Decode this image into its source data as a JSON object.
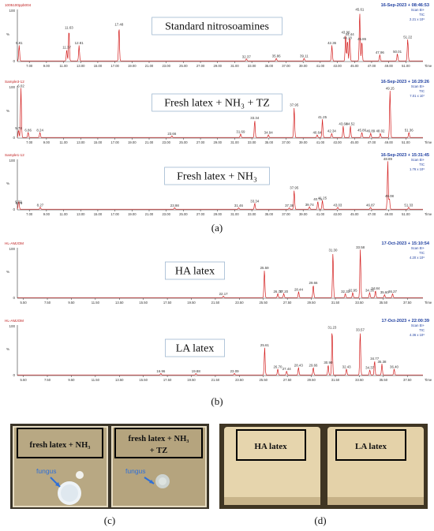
{
  "panels": {
    "a": "(a)",
    "b": "(b)",
    "c": "(c)",
    "d": "(d)"
  },
  "colors": {
    "trace": "#d42020",
    "axis": "#333333",
    "header_blue": "#1f3fa0",
    "header_red": "#c02020",
    "box_border": "#9fb8d0"
  },
  "chart_data": [
    {
      "type": "line",
      "sample_id": "1005100ppb004",
      "title": "Standard nitrosoamines",
      "timestamp": "16-Sep-2023 + 08:46:53",
      "scan_lines": [
        "Scan EI+",
        "TIC",
        "2.21 x 10⁸"
      ],
      "ylabel": "%",
      "xlabel": "Time",
      "y_ticks": [
        "100",
        "0"
      ],
      "x_ticks": [
        "7.00",
        "9.00",
        "11.00",
        "13.00",
        "15.00",
        "17.00",
        "19.00",
        "21.00",
        "23.00",
        "25.00",
        "27.00",
        "29.00",
        "31.00",
        "33.00",
        "35.00",
        "37.00",
        "39.00",
        "41.00",
        "43.00",
        "45.00",
        "47.00",
        "49.00",
        "51.00"
      ],
      "xlim": [
        5.6,
        53.0
      ],
      "ylim": [
        0,
        100
      ],
      "peaks": [
        {
          "rt": 5.81,
          "h": 30
        },
        {
          "rt": 11.37,
          "h": 22
        },
        {
          "rt": 11.63,
          "h": 60
        },
        {
          "rt": 12.81,
          "h": 30
        },
        {
          "rt": 17.48,
          "h": 66
        },
        {
          "rt": 32.37,
          "h": 4
        },
        {
          "rt": 35.86,
          "h": 5
        },
        {
          "rt": 39.11,
          "h": 5
        },
        {
          "rt": 42.36,
          "h": 30
        },
        {
          "rt": 43.96,
          "h": 51
        },
        {
          "rt": 44.18,
          "h": 40
        },
        {
          "rt": 44.44,
          "h": 47
        },
        {
          "rt": 45.61,
          "h": 95
        },
        {
          "rt": 45.86,
          "h": 38
        },
        {
          "rt": 47.96,
          "h": 12
        },
        {
          "rt": 50.01,
          "h": 14
        },
        {
          "rt": 51.22,
          "h": 42
        }
      ]
    },
    {
      "type": "line",
      "sample_id": "Sample3-12",
      "title": "Fresh latex + NH₃ + TZ",
      "timestamp": "16-Sep-2023 + 16:29:26",
      "scan_lines": [
        "Scan EI+",
        "TIC",
        "7.01 x 10⁷"
      ],
      "ylabel": "%",
      "xlabel": "Time",
      "y_ticks": [
        "100",
        "0"
      ],
      "x_ticks": [
        "7.00",
        "9.00",
        "11.00",
        "13.00",
        "15.00",
        "17.00",
        "19.00",
        "21.00",
        "23.00",
        "25.00",
        "27.00",
        "29.00",
        "31.00",
        "33.00",
        "35.00",
        "37.00",
        "39.00",
        "41.00",
        "43.00",
        "45.00",
        "47.00",
        "49.00",
        "51.00"
      ],
      "xlim": [
        5.6,
        53.0
      ],
      "ylim": [
        0,
        100
      ],
      "peaks": [
        {
          "rt": 5.74,
          "h": 14
        },
        {
          "rt": 6.02,
          "h": 95
        },
        {
          "rt": 6.86,
          "h": 10
        },
        {
          "rt": 8.24,
          "h": 10
        },
        {
          "rt": 23.66,
          "h": 3
        },
        {
          "rt": 31.69,
          "h": 7
        },
        {
          "rt": 33.34,
          "h": 33
        },
        {
          "rt": 34.94,
          "h": 5
        },
        {
          "rt": 37.95,
          "h": 58
        },
        {
          "rt": 40.64,
          "h": 5
        },
        {
          "rt": 41.25,
          "h": 35
        },
        {
          "rt": 42.34,
          "h": 8
        },
        {
          "rt": 43.68,
          "h": 22
        },
        {
          "rt": 44.52,
          "h": 22
        },
        {
          "rt": 45.86,
          "h": 10
        },
        {
          "rt": 46.89,
          "h": 8
        },
        {
          "rt": 48.02,
          "h": 8
        },
        {
          "rt": 49.15,
          "h": 90
        },
        {
          "rt": 51.36,
          "h": 10
        }
      ]
    },
    {
      "type": "line",
      "sample_id": "Sample1-12",
      "title": "Fresh latex + NH₃",
      "timestamp": "16-Sep-2023 + 15:31:45",
      "scan_lines": [
        "Scan EI+",
        "TIC",
        "1.76 x 10⁸"
      ],
      "ylabel": "%",
      "xlabel": "Time",
      "y_ticks": [
        "100",
        "0"
      ],
      "x_ticks": [
        "7.00",
        "9.00",
        "11.00",
        "13.00",
        "15.00",
        "17.00",
        "19.00",
        "21.00",
        "23.00",
        "25.00",
        "27.00",
        "29.00",
        "31.00",
        "33.00",
        "35.00",
        "37.00",
        "39.00",
        "41.00",
        "43.00",
        "45.00",
        "47.00",
        "49.00",
        "51.00"
      ],
      "xlim": [
        5.6,
        53.0
      ],
      "ylim": [
        0,
        100
      ],
      "peaks": [
        {
          "rt": 5.73,
          "h": 10
        },
        {
          "rt": 5.79,
          "h": 8
        },
        {
          "rt": 8.27,
          "h": 4
        },
        {
          "rt": 23.98,
          "h": 3
        },
        {
          "rt": 31.46,
          "h": 3
        },
        {
          "rt": 33.34,
          "h": 12
        },
        {
          "rt": 37.38,
          "h": 3
        },
        {
          "rt": 37.95,
          "h": 38
        },
        {
          "rt": 39.74,
          "h": 5
        },
        {
          "rt": 40.71,
          "h": 16
        },
        {
          "rt": 41.25,
          "h": 18
        },
        {
          "rt": 43.03,
          "h": 4
        },
        {
          "rt": 46.87,
          "h": 4
        },
        {
          "rt": 48.89,
          "h": 95
        },
        {
          "rt": 49.08,
          "h": 22
        },
        {
          "rt": 51.33,
          "h": 4
        }
      ]
    },
    {
      "type": "line",
      "sample_id": "HL-AMJOM",
      "title": "HA latex",
      "timestamp": "17-Oct-2023 + 15:10:54",
      "scan_lines": [
        "Scan EI+",
        "TIC",
        "4.20 x 10⁸"
      ],
      "ylabel": "%",
      "xlabel": "Time",
      "y_ticks": [
        "100",
        "0"
      ],
      "x_ticks": [
        "5.50",
        "7.50",
        "9.50",
        "11.50",
        "13.50",
        "15.50",
        "17.50",
        "19.50",
        "21.50",
        "23.50",
        "25.50",
        "27.50",
        "29.50",
        "31.50",
        "33.50",
        "35.50",
        "37.50"
      ],
      "xlim": [
        5.0,
        38.8
      ],
      "ylim": [
        0,
        100
      ],
      "peaks": [
        {
          "rt": 22.17,
          "h": 3
        },
        {
          "rt": 25.59,
          "h": 55
        },
        {
          "rt": 26.7,
          "h": 8
        },
        {
          "rt": 27.2,
          "h": 8
        },
        {
          "rt": 28.44,
          "h": 12
        },
        {
          "rt": 29.66,
          "h": 25
        },
        {
          "rt": 31.3,
          "h": 90
        },
        {
          "rt": 32.33,
          "h": 8
        },
        {
          "rt": 32.95,
          "h": 10
        },
        {
          "rt": 33.58,
          "h": 95
        },
        {
          "rt": 34.36,
          "h": 10
        },
        {
          "rt": 34.84,
          "h": 14
        },
        {
          "rt": 35.6,
          "h": 6
        },
        {
          "rt": 36.27,
          "h": 8
        }
      ]
    },
    {
      "type": "line",
      "sample_id": "HL-AMJOM",
      "title": "LA latex",
      "timestamp": "17-Oct-2023 + 22:00:39",
      "scan_lines": [
        "Scan EI+",
        "TIC",
        "4.36 x 10⁸"
      ],
      "ylabel": "%",
      "xlabel": "Time",
      "y_ticks": [
        "100",
        "0"
      ],
      "x_ticks": [
        "5.50",
        "7.50",
        "9.50",
        "11.50",
        "13.50",
        "15.50",
        "17.50",
        "19.50",
        "21.50",
        "23.50",
        "25.50",
        "27.50",
        "29.50",
        "31.50",
        "33.50",
        "35.50",
        "37.50"
      ],
      "xlim": [
        5.0,
        38.8
      ],
      "ylim": [
        0,
        100
      ],
      "peaks": [
        {
          "rt": 16.96,
          "h": 3
        },
        {
          "rt": 19.88,
          "h": 3
        },
        {
          "rt": 23.09,
          "h": 3
        },
        {
          "rt": 25.61,
          "h": 55
        },
        {
          "rt": 26.7,
          "h": 12
        },
        {
          "rt": 27.44,
          "h": 8
        },
        {
          "rt": 28.43,
          "h": 15
        },
        {
          "rt": 29.66,
          "h": 15
        },
        {
          "rt": 30.9,
          "h": 20
        },
        {
          "rt": 31.23,
          "h": 90
        },
        {
          "rt": 32.43,
          "h": 12
        },
        {
          "rt": 33.57,
          "h": 85
        },
        {
          "rt": 34.37,
          "h": 10
        },
        {
          "rt": 34.77,
          "h": 28
        },
        {
          "rt": 35.38,
          "h": 22
        },
        {
          "rt": 36.4,
          "h": 12
        }
      ]
    }
  ],
  "photos": {
    "c_left_label": "fresh latex + NH₃",
    "c_right_label_1": "fresh latex + NH₃",
    "c_right_label_2": "+ TZ",
    "c_left_arrow": "fungus",
    "c_right_arrow": "fungus",
    "d_left_label": "HA latex",
    "d_right_label": "LA latex"
  }
}
